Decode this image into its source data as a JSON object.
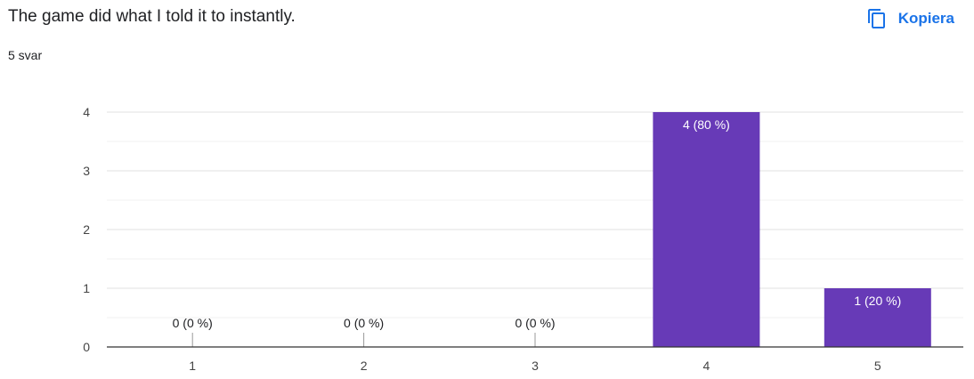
{
  "question": {
    "title": "The game did what I told it to instantly.",
    "response_count": "5 svar"
  },
  "actions": {
    "copy_label": "Kopiera",
    "copy_icon": "copy-icon"
  },
  "colors": {
    "bar": "#673ab7",
    "accent": "#1a73e8",
    "grid": "#e0e0e0",
    "axis": "#333333",
    "text": "#202124"
  },
  "chart_data": {
    "type": "bar",
    "title": "",
    "xlabel": "",
    "ylabel": "",
    "categories": [
      "1",
      "2",
      "3",
      "4",
      "5"
    ],
    "values": [
      0,
      0,
      0,
      4,
      1
    ],
    "data_labels": [
      "0 (0 %)",
      "0 (0 %)",
      "0 (0 %)",
      "4 (80 %)",
      "1 (20 %)"
    ],
    "ylim": [
      0,
      4
    ],
    "yticks": [
      "0",
      "1",
      "2",
      "3",
      "4"
    ],
    "grid": true,
    "legend": "none"
  }
}
